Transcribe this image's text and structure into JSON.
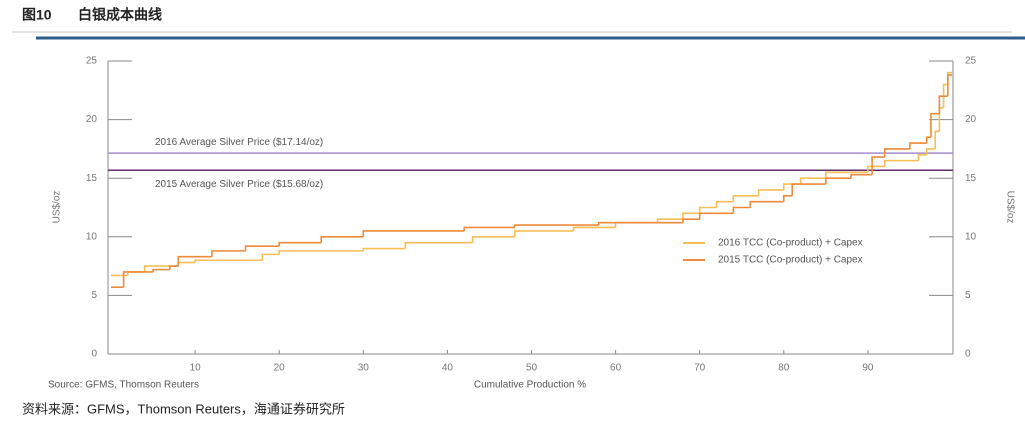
{
  "figure_label": "图10",
  "heading": "白银成本曲线",
  "footer": "资料来源：GFMS，Thomson Reuters，海通证券研究所",
  "chart_data": {
    "type": "step",
    "source": "Source: GFMS, Thomson Reuters",
    "x_label": "Cumulative Production %",
    "y_label": "US$/oz",
    "y2_label": "US$/oz",
    "xlim": [
      0,
      100
    ],
    "xticks": [
      10,
      20,
      30,
      40,
      50,
      60,
      70,
      80,
      90
    ],
    "ylim": [
      0,
      25
    ],
    "yticks": [
      0,
      5,
      10,
      15,
      20,
      25
    ],
    "y2lim": [
      0,
      25
    ],
    "y2ticks": [
      0,
      5,
      10,
      15,
      20,
      25
    ],
    "reference_lines": [
      {
        "label": "2016 Average Silver Price ($17.14/oz)",
        "value": 17.14,
        "color": "#a58ccb"
      },
      {
        "label": "2015 Average Silver Price ($15.68/oz)",
        "value": 15.68,
        "color": "#5e2d6e"
      }
    ],
    "series": [
      {
        "name": "2016 TCC (Co-product) + Capex",
        "color": "#f8bd55",
        "x": [
          0,
          2,
          4,
          8,
          10,
          18,
          20,
          30,
          35,
          43,
          48,
          55,
          60,
          65,
          68,
          70,
          72,
          74,
          77,
          80,
          82,
          85,
          90,
          92,
          96,
          97,
          98,
          98.5,
          99,
          99.5
        ],
        "values": [
          6.7,
          7.0,
          7.5,
          7.8,
          8.0,
          8.5,
          8.8,
          9.0,
          9.5,
          10.0,
          10.5,
          10.8,
          11.2,
          11.5,
          12.0,
          12.5,
          13.0,
          13.5,
          14.0,
          14.5,
          15.0,
          15.5,
          16.0,
          16.5,
          17.0,
          17.5,
          19.0,
          21.0,
          23.0,
          24.0
        ]
      },
      {
        "name": "2015 TCC (Co-product) + Capex",
        "color": "#ee8a3a",
        "x": [
          0,
          1.5,
          5,
          7,
          8,
          12,
          16,
          20,
          25,
          30,
          42,
          48,
          58,
          68,
          70,
          74,
          76,
          80,
          81,
          85,
          88,
          90.5,
          92,
          95,
          97,
          97.5,
          98.5,
          99.5
        ],
        "values": [
          5.7,
          7.0,
          7.2,
          7.5,
          8.3,
          8.8,
          9.2,
          9.5,
          10.0,
          10.5,
          10.8,
          11.0,
          11.2,
          11.5,
          12.0,
          12.5,
          13.0,
          13.5,
          14.5,
          15.0,
          15.3,
          16.8,
          17.5,
          18.0,
          18.5,
          20.5,
          22.0,
          23.8
        ]
      }
    ]
  }
}
